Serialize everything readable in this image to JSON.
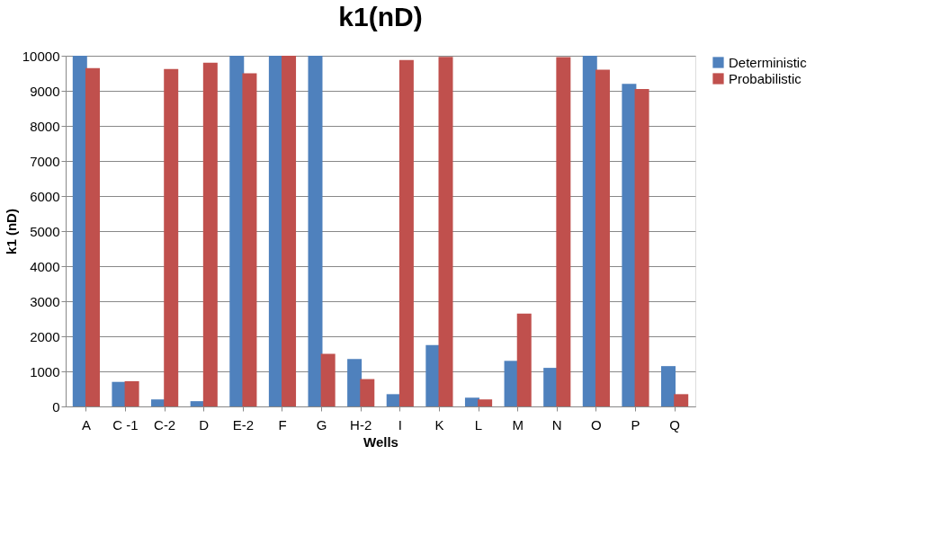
{
  "chart_data": {
    "type": "bar",
    "title": "k1(nD)",
    "xlabel": "Wells",
    "ylabel": "k1 (nD)",
    "categories": [
      "A",
      "C -1",
      "C-2",
      "D",
      "E-2",
      "F",
      "G",
      "H-2",
      "I",
      "K",
      "L",
      "M",
      "N",
      "O",
      "P",
      "Q"
    ],
    "series": [
      {
        "name": "Deterministic",
        "color": "#4f81bd",
        "values": [
          10000,
          700,
          200,
          150,
          10000,
          10000,
          10000,
          1350,
          350,
          1750,
          250,
          1300,
          1100,
          10000,
          9200,
          1150
        ]
      },
      {
        "name": "Probabilistic",
        "color": "#c0504d",
        "values": [
          9650,
          720,
          9620,
          9800,
          9500,
          10000,
          1500,
          780,
          9880,
          9970,
          200,
          2650,
          9960,
          9600,
          9050,
          350
        ]
      }
    ],
    "ylim": [
      0,
      10000
    ],
    "yticks": [
      0,
      1000,
      2000,
      3000,
      4000,
      5000,
      6000,
      7000,
      8000,
      9000,
      10000
    ],
    "grid": "y",
    "legend": "right"
  }
}
